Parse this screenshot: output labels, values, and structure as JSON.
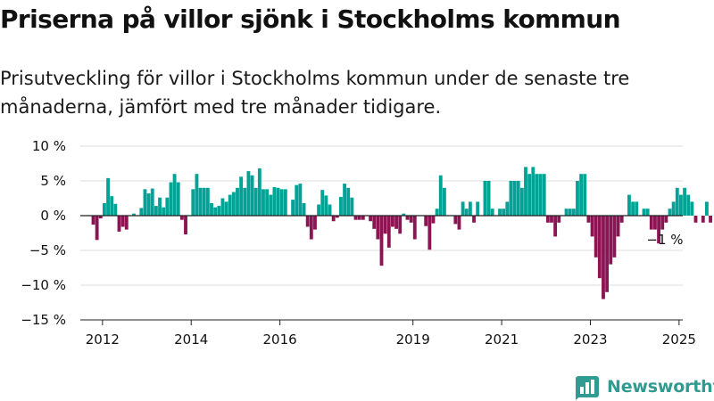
{
  "title": "Priserna på villor sjönk i Stockholms kommun",
  "subtitle": "Prisutveckling för villor i Stockholms kommun under de senaste tre månaderna, jämfört med tre månader tidigare.",
  "brand": {
    "name": "Newsworthy"
  },
  "colors": {
    "positive": "#00a396",
    "negative": "#8b1553",
    "grid": "#dddddd",
    "axis": "#222222",
    "brand": "#2f9b91"
  },
  "chart_data": {
    "type": "bar",
    "x_start": "2011-07",
    "x_end": "2025-02",
    "ylim": [
      -15,
      10
    ],
    "y_ticks": [
      10,
      5,
      0,
      -5,
      -10,
      -15
    ],
    "y_tick_labels": [
      "10 %",
      "5 %",
      "0 %",
      "−5 %",
      "−10 %",
      "−15 %"
    ],
    "x_tick_years": [
      2012,
      2014,
      2016,
      2019,
      2021,
      2023,
      2025
    ],
    "x_tick_labels": [
      "2012",
      "2014",
      "2016",
      "2019",
      "2021",
      "2023",
      "2025"
    ],
    "grid": true,
    "end_label": "−1 %",
    "series": [
      {
        "start": "2011-10",
        "values": [
          -1.3,
          -3.5,
          -0.4,
          1.8,
          5.4,
          2.8,
          1.7,
          -2.3,
          -1.6,
          -2.0,
          0.0,
          0.3,
          0.0,
          1.1,
          3.8,
          3.2,
          3.9,
          1.4,
          2.6,
          1.2,
          2.6,
          4.8,
          6.0,
          4.8,
          -0.6,
          -2.7,
          0.0,
          3.8,
          6.0,
          4.0,
          4.0,
          4.0,
          1.8,
          1.2,
          1.4,
          2.5,
          2.0,
          3.0,
          3.4,
          4.0,
          5.6,
          4.0,
          6.4,
          5.8,
          4.0,
          6.8,
          3.8,
          3.8,
          3.0,
          4.1,
          4.0,
          3.8,
          3.8,
          0.0,
          2.3,
          4.4,
          4.6,
          1.8,
          -1.6,
          -3.4,
          -2.0,
          1.6,
          3.7,
          2.9,
          1.6,
          -0.8,
          -0.3,
          2.7,
          4.6,
          4.0,
          2.6,
          -0.6,
          -0.6,
          -0.6,
          0.0,
          -0.8,
          -1.9,
          -3.4,
          -7.2,
          -2.6,
          -4.6,
          -1.6,
          -1.9,
          -2.6,
          0.3,
          -0.6,
          -1.0,
          -3.4,
          0.0,
          0.0,
          -1.5,
          -4.9,
          -1.1,
          1.0,
          5.8,
          4.0,
          0.0,
          0.0,
          -1.2,
          -2.0,
          2.0,
          1.0,
          2.0,
          -1.0,
          2.0,
          0.0,
          5.0,
          5.0,
          1.0,
          0.0,
          1.0,
          1.0,
          2.0,
          5.0,
          5.0,
          5.0,
          4.0,
          7.0,
          6.0,
          7.0,
          6.0,
          6.0,
          6.0,
          -1.0,
          -1.0,
          -3.0,
          -1.0,
          0.0,
          1.0,
          1.0,
          1.0,
          5.0,
          6.0,
          6.0,
          -1.0,
          -3.0,
          -6.0,
          -9.0,
          -12.0,
          -11.0,
          -7.0,
          -6.0,
          -3.0,
          -1.0,
          0.0,
          3.0,
          2.0,
          2.0,
          0.0,
          1.0,
          1.0,
          -2.0,
          -2.0,
          -4.0,
          -2.0,
          -1.0,
          1.0,
          2.0,
          4.0,
          3.0,
          4.0,
          3.0,
          2.0,
          -1.0,
          0.0,
          -1.0,
          2.0,
          -1.0
        ]
      }
    ]
  }
}
